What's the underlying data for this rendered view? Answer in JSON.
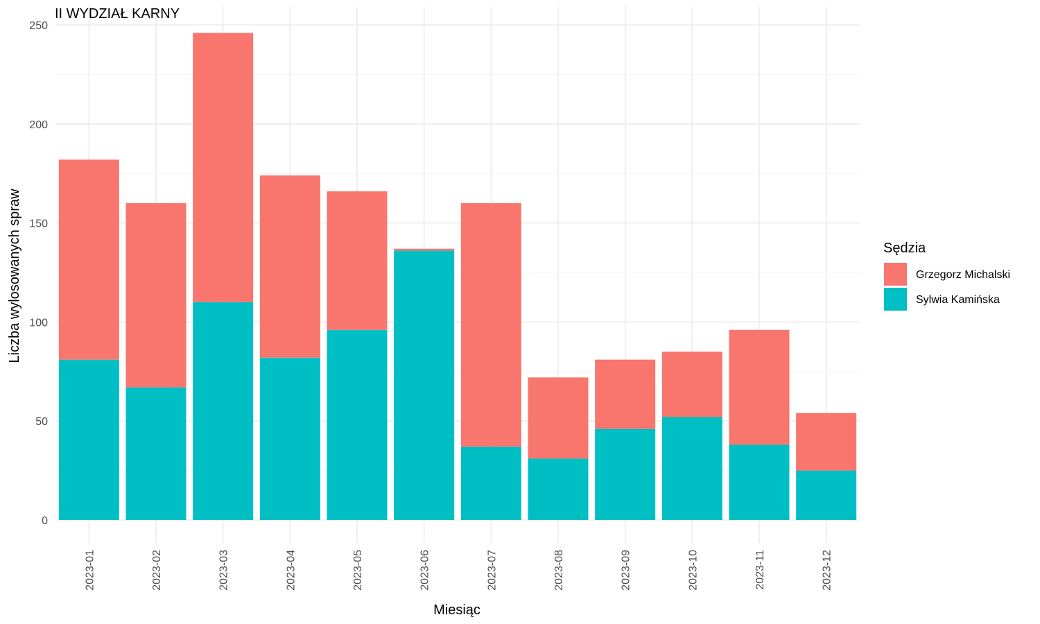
{
  "chart_data": {
    "type": "bar",
    "stacked": true,
    "title": "II WYDZIAŁ KARNY",
    "xlabel": "Miesiąc",
    "ylabel": "Liczba wylosowanych spraw",
    "categories": [
      "2023-01",
      "2023-02",
      "2023-03",
      "2023-04",
      "2023-05",
      "2023-06",
      "2023-07",
      "2023-08",
      "2023-09",
      "2023-10",
      "2023-11",
      "2023-12"
    ],
    "series": [
      {
        "name": "Sylwia Kamińska",
        "color": "#00BFC4",
        "values": [
          81,
          67,
          110,
          82,
          96,
          136,
          37,
          31,
          46,
          52,
          38,
          25
        ]
      },
      {
        "name": "Grzegorz Michalski",
        "color": "#F8766D",
        "values": [
          101,
          93,
          136,
          92,
          70,
          1,
          123,
          41,
          35,
          33,
          58,
          29
        ]
      }
    ],
    "ylim": [
      0,
      250
    ],
    "yticks": [
      0,
      50,
      100,
      150,
      200,
      250
    ],
    "grid": true,
    "legend": {
      "title": "Sędzia",
      "position": "right",
      "order": [
        "Grzegorz Michalski",
        "Sylwia Kamińska"
      ]
    }
  }
}
